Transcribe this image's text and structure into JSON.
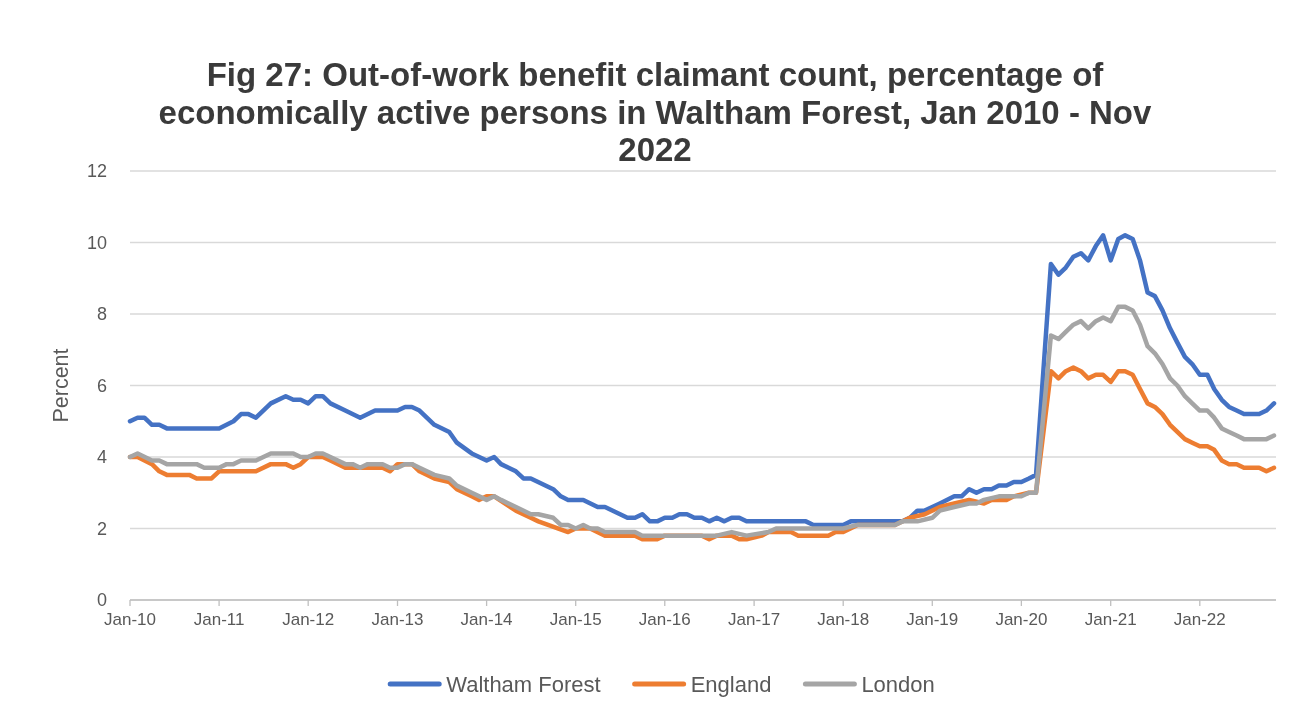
{
  "chart_data": {
    "type": "line",
    "title": "Fig 27: Out-of-work benefit claimant count, percentage of economically active persons in Waltham Forest, Jan 2010 - Nov 2022",
    "ylabel": "Percent",
    "xlim": [
      "2010-01",
      "2022-11"
    ],
    "xticks": [
      {
        "value": "2010-01",
        "label": "Jan-10"
      },
      {
        "value": "2011-01",
        "label": "Jan-11"
      },
      {
        "value": "2012-01",
        "label": "Jan-12"
      },
      {
        "value": "2013-01",
        "label": "Jan-13"
      },
      {
        "value": "2014-01",
        "label": "Jan-14"
      },
      {
        "value": "2015-01",
        "label": "Jan-15"
      },
      {
        "value": "2016-01",
        "label": "Jan-16"
      },
      {
        "value": "2017-01",
        "label": "Jan-17"
      },
      {
        "value": "2018-01",
        "label": "Jan-18"
      },
      {
        "value": "2019-01",
        "label": "Jan-19"
      },
      {
        "value": "2020-01",
        "label": "Jan-20"
      },
      {
        "value": "2021-01",
        "label": "Jan-21"
      },
      {
        "value": "2022-01",
        "label": "Jan-22"
      }
    ],
    "ylim": [
      0,
      12
    ],
    "yticks": [
      0,
      2,
      4,
      6,
      8,
      10,
      12
    ],
    "grid": "y",
    "legend": "bottom",
    "series": [
      {
        "name": "Waltham Forest",
        "color": "#4472c4",
        "x": [
          "2010-01",
          "2010-02",
          "2010-03",
          "2010-04",
          "2010-05",
          "2010-06",
          "2011-01",
          "2011-03",
          "2011-04",
          "2011-05",
          "2011-06",
          "2011-08",
          "2011-10",
          "2011-11",
          "2011-12",
          "2012-01",
          "2012-02",
          "2012-03",
          "2012-04",
          "2012-06",
          "2012-08",
          "2012-10",
          "2013-01",
          "2013-02",
          "2013-03",
          "2013-04",
          "2013-06",
          "2013-08",
          "2013-09",
          "2013-11",
          "2014-01",
          "2014-02",
          "2014-03",
          "2014-04",
          "2014-05",
          "2014-06",
          "2014-07",
          "2014-10",
          "2014-11",
          "2014-12",
          "2015-02",
          "2015-04",
          "2015-05",
          "2015-08",
          "2015-09",
          "2015-10",
          "2015-11",
          "2015-12",
          "2016-01",
          "2016-02",
          "2016-03",
          "2016-04",
          "2016-05",
          "2016-06",
          "2016-07",
          "2016-08",
          "2016-09",
          "2016-10",
          "2016-11",
          "2016-12",
          "2017-08",
          "2017-09",
          "2018-01",
          "2018-02",
          "2018-09",
          "2018-10",
          "2018-11",
          "2018-12",
          "2019-02",
          "2019-04",
          "2019-05",
          "2019-06",
          "2019-07",
          "2019-08",
          "2019-09",
          "2019-10",
          "2019-11",
          "2019-12",
          "2020-01",
          "2020-02",
          "2020-03",
          "2020-05",
          "2020-06",
          "2020-07",
          "2020-08",
          "2020-09",
          "2020-10",
          "2020-11",
          "2020-12",
          "2021-01",
          "2021-02",
          "2021-03",
          "2021-04",
          "2021-05",
          "2021-06",
          "2021-07",
          "2021-08",
          "2021-09",
          "2021-10",
          "2021-11",
          "2021-12",
          "2022-01",
          "2022-02",
          "2022-03",
          "2022-04",
          "2022-05",
          "2022-06",
          "2022-07",
          "2022-09",
          "2022-10",
          "2022-11"
        ],
        "values": [
          5.0,
          5.1,
          5.1,
          4.9,
          4.9,
          4.8,
          4.8,
          5.0,
          5.2,
          5.2,
          5.1,
          5.5,
          5.7,
          5.6,
          5.6,
          5.5,
          5.7,
          5.7,
          5.5,
          5.3,
          5.1,
          5.3,
          5.3,
          5.4,
          5.4,
          5.3,
          4.9,
          4.7,
          4.4,
          4.1,
          3.9,
          4.0,
          3.8,
          3.7,
          3.6,
          3.4,
          3.4,
          3.1,
          2.9,
          2.8,
          2.8,
          2.6,
          2.6,
          2.3,
          2.3,
          2.4,
          2.2,
          2.2,
          2.3,
          2.3,
          2.4,
          2.4,
          2.3,
          2.3,
          2.2,
          2.3,
          2.2,
          2.3,
          2.3,
          2.2,
          2.2,
          2.1,
          2.1,
          2.2,
          2.2,
          2.3,
          2.5,
          2.5,
          2.7,
          2.9,
          2.9,
          3.1,
          3.0,
          3.1,
          3.1,
          3.2,
          3.2,
          3.3,
          3.3,
          3.4,
          3.5,
          9.4,
          9.1,
          9.3,
          9.6,
          9.7,
          9.5,
          9.9,
          10.2,
          9.5,
          10.1,
          10.2,
          10.1,
          9.5,
          8.6,
          8.5,
          8.1,
          7.6,
          7.2,
          6.8,
          6.6,
          6.3,
          6.3,
          5.9,
          5.6,
          5.4,
          5.3,
          5.2,
          5.2,
          5.3,
          5.5
        ]
      },
      {
        "name": "England",
        "color": "#ed7d31",
        "x": [
          "2010-01",
          "2010-02",
          "2010-04",
          "2010-05",
          "2010-06",
          "2010-09",
          "2010-10",
          "2010-12",
          "2011-01",
          "2011-06",
          "2011-08",
          "2011-10",
          "2011-11",
          "2011-12",
          "2012-01",
          "2012-03",
          "2012-04",
          "2012-06",
          "2012-11",
          "2012-12",
          "2013-01",
          "2013-03",
          "2013-04",
          "2013-06",
          "2013-08",
          "2013-09",
          "2013-11",
          "2013-12",
          "2014-01",
          "2014-02",
          "2014-05",
          "2014-07",
          "2014-08",
          "2014-12",
          "2015-01",
          "2015-03",
          "2015-05",
          "2015-09",
          "2015-10",
          "2015-12",
          "2016-01",
          "2016-06",
          "2016-07",
          "2016-08",
          "2016-10",
          "2016-11",
          "2016-12",
          "2017-02",
          "2017-03",
          "2017-06",
          "2017-07",
          "2017-11",
          "2017-12",
          "2018-01",
          "2018-03",
          "2018-08",
          "2018-10",
          "2018-12",
          "2019-02",
          "2019-04",
          "2019-06",
          "2019-08",
          "2019-09",
          "2019-11",
          "2019-12",
          "2020-02",
          "2020-03",
          "2020-05",
          "2020-06",
          "2020-07",
          "2020-08",
          "2020-09",
          "2020-10",
          "2020-11",
          "2020-12",
          "2021-01",
          "2021-02",
          "2021-03",
          "2021-04",
          "2021-05",
          "2021-06",
          "2021-07",
          "2021-08",
          "2021-09",
          "2021-10",
          "2021-11",
          "2021-12",
          "2022-01",
          "2022-02",
          "2022-03",
          "2022-04",
          "2022-05",
          "2022-06",
          "2022-07",
          "2022-09",
          "2022-10",
          "2022-11"
        ],
        "values": [
          4.0,
          4.0,
          3.8,
          3.6,
          3.5,
          3.5,
          3.4,
          3.4,
          3.6,
          3.6,
          3.8,
          3.8,
          3.7,
          3.8,
          4.0,
          4.0,
          3.9,
          3.7,
          3.7,
          3.6,
          3.8,
          3.8,
          3.6,
          3.4,
          3.3,
          3.1,
          2.9,
          2.8,
          2.9,
          2.9,
          2.5,
          2.3,
          2.2,
          1.9,
          2.0,
          2.0,
          1.8,
          1.8,
          1.7,
          1.7,
          1.8,
          1.8,
          1.7,
          1.8,
          1.8,
          1.7,
          1.7,
          1.8,
          1.9,
          1.9,
          1.8,
          1.8,
          1.9,
          1.9,
          2.1,
          2.1,
          2.3,
          2.4,
          2.6,
          2.7,
          2.8,
          2.7,
          2.8,
          2.8,
          2.9,
          3.0,
          3.0,
          6.4,
          6.2,
          6.4,
          6.5,
          6.4,
          6.2,
          6.3,
          6.3,
          6.1,
          6.4,
          6.4,
          6.3,
          5.9,
          5.5,
          5.4,
          5.2,
          4.9,
          4.7,
          4.5,
          4.4,
          4.3,
          4.3,
          4.2,
          3.9,
          3.8,
          3.8,
          3.7,
          3.7,
          3.6,
          3.7
        ]
      },
      {
        "name": "London",
        "color": "#a5a5a5",
        "x": [
          "2010-01",
          "2010-02",
          "2010-04",
          "2010-05",
          "2010-06",
          "2010-10",
          "2010-11",
          "2011-01",
          "2011-02",
          "2011-03",
          "2011-04",
          "2011-06",
          "2011-08",
          "2011-11",
          "2011-12",
          "2012-01",
          "2012-02",
          "2012-03",
          "2012-06",
          "2012-07",
          "2012-08",
          "2012-09",
          "2012-11",
          "2012-12",
          "2013-01",
          "2013-02",
          "2013-03",
          "2013-04",
          "2013-06",
          "2013-08",
          "2013-09",
          "2013-11",
          "2014-01",
          "2014-02",
          "2014-03",
          "2014-05",
          "2014-07",
          "2014-08",
          "2014-10",
          "2014-11",
          "2014-12",
          "2015-01",
          "2015-02",
          "2015-03",
          "2015-04",
          "2015-05",
          "2015-09",
          "2015-10",
          "2016-08",
          "2016-10",
          "2016-12",
          "2017-03",
          "2017-04",
          "2018-01",
          "2018-03",
          "2018-08",
          "2018-09",
          "2018-11",
          "2019-01",
          "2019-02",
          "2019-04",
          "2019-06",
          "2019-07",
          "2019-08",
          "2019-10",
          "2020-01",
          "2020-02",
          "2020-03",
          "2020-05",
          "2020-06",
          "2020-07",
          "2020-08",
          "2020-09",
          "2020-10",
          "2020-11",
          "2020-12",
          "2021-01",
          "2021-02",
          "2021-03",
          "2021-04",
          "2021-05",
          "2021-06",
          "2021-07",
          "2021-08",
          "2021-09",
          "2021-10",
          "2021-11",
          "2021-12",
          "2022-01",
          "2022-02",
          "2022-03",
          "2022-04",
          "2022-05",
          "2022-06",
          "2022-07",
          "2022-10",
          "2022-11"
        ],
        "values": [
          4.0,
          4.1,
          3.9,
          3.9,
          3.8,
          3.8,
          3.7,
          3.7,
          3.8,
          3.8,
          3.9,
          3.9,
          4.1,
          4.1,
          4.0,
          4.0,
          4.1,
          4.1,
          3.8,
          3.8,
          3.7,
          3.8,
          3.8,
          3.7,
          3.7,
          3.8,
          3.8,
          3.7,
          3.5,
          3.4,
          3.2,
          3.0,
          2.8,
          2.9,
          2.8,
          2.6,
          2.4,
          2.4,
          2.3,
          2.1,
          2.1,
          2.0,
          2.1,
          2.0,
          2.0,
          1.9,
          1.9,
          1.8,
          1.8,
          1.9,
          1.8,
          1.9,
          2.0,
          2.0,
          2.1,
          2.1,
          2.2,
          2.2,
          2.3,
          2.5,
          2.6,
          2.7,
          2.7,
          2.8,
          2.9,
          2.9,
          3.0,
          3.0,
          7.4,
          7.3,
          7.5,
          7.7,
          7.8,
          7.6,
          7.8,
          7.9,
          7.8,
          8.2,
          8.2,
          8.1,
          7.7,
          7.1,
          6.9,
          6.6,
          6.2,
          6.0,
          5.7,
          5.5,
          5.3,
          5.3,
          5.1,
          4.8,
          4.7,
          4.6,
          4.5,
          4.5,
          4.6
        ]
      }
    ]
  }
}
